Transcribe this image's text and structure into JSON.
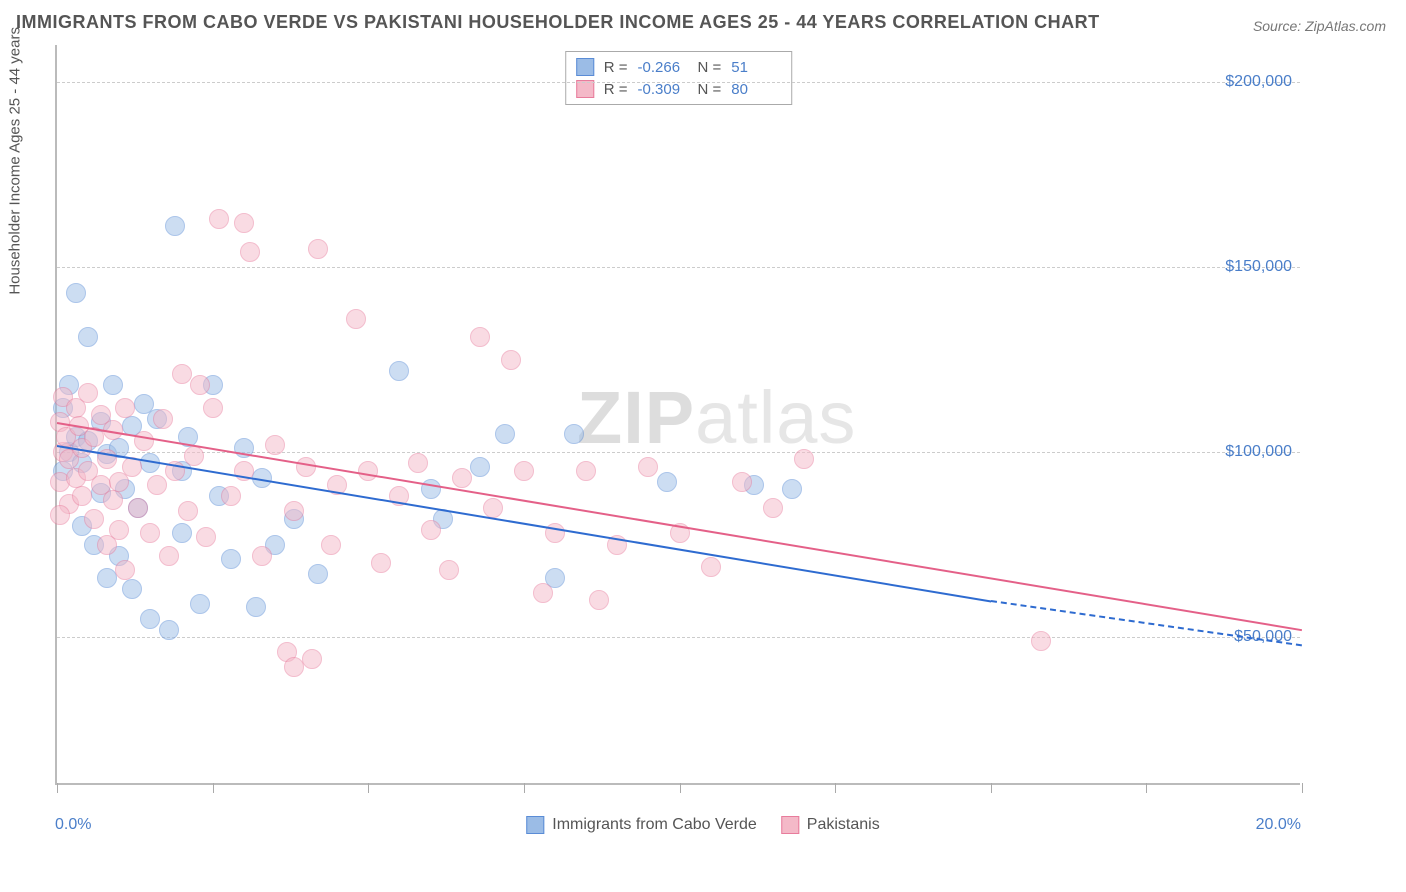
{
  "title": "IMMIGRANTS FROM CABO VERDE VS PAKISTANI HOUSEHOLDER INCOME AGES 25 - 44 YEARS CORRELATION CHART",
  "source": "Source: ZipAtlas.com",
  "ylabel": "Householder Income Ages 25 - 44 years",
  "watermark_strong": "ZIP",
  "watermark_light": "atlas",
  "chart": {
    "type": "scatter",
    "xlim": [
      0,
      20
    ],
    "ylim": [
      10000,
      210000
    ],
    "x_tick_label_min": "0.0%",
    "x_tick_label_max": "20.0%",
    "x_tick_positions": [
      0,
      2.5,
      5,
      7.5,
      10,
      12.5,
      15,
      17.5,
      20
    ],
    "y_gridlines": [
      50000,
      100000,
      150000,
      200000
    ],
    "y_tick_labels": [
      "$50,000",
      "$100,000",
      "$150,000",
      "$200,000"
    ],
    "background_color": "#ffffff",
    "grid_color": "#cccccc",
    "axis_color": "#bbbbbb",
    "label_color": "#4a7ec9",
    "title_color": "#555555",
    "point_radius": 10,
    "point_opacity": 0.5,
    "line_width": 2
  },
  "series": [
    {
      "name": "Immigrants from Cabo Verde",
      "fill": "#9bbce6",
      "stroke": "#5a8cd6",
      "line_color": "#2e6bd0",
      "r": "-0.266",
      "n": "51",
      "trend": {
        "x0": 0,
        "y0": 102000,
        "x1": 15,
        "y1": 60000,
        "dash_after_x": 15,
        "x2": 20,
        "y2": 48000
      },
      "points": [
        [
          0.1,
          95000
        ],
        [
          0.1,
          112000
        ],
        [
          0.2,
          100000
        ],
        [
          0.2,
          118000
        ],
        [
          0.3,
          104000
        ],
        [
          0.3,
          143000
        ],
        [
          0.4,
          97000
        ],
        [
          0.5,
          131000
        ],
        [
          0.5,
          103000
        ],
        [
          0.6,
          75000
        ],
        [
          0.7,
          108000
        ],
        [
          0.7,
          89000
        ],
        [
          0.8,
          99500
        ],
        [
          0.8,
          66000
        ],
        [
          0.9,
          118000
        ],
        [
          1.0,
          101000
        ],
        [
          1.0,
          72000
        ],
        [
          1.1,
          90000
        ],
        [
          1.2,
          107000
        ],
        [
          1.2,
          63000
        ],
        [
          1.3,
          85000
        ],
        [
          1.4,
          113000
        ],
        [
          1.5,
          55000
        ],
        [
          1.5,
          97000
        ],
        [
          1.6,
          109000
        ],
        [
          1.8,
          52000
        ],
        [
          1.9,
          161000
        ],
        [
          2.0,
          95000
        ],
        [
          2.0,
          78000
        ],
        [
          2.1,
          104000
        ],
        [
          2.3,
          59000
        ],
        [
          2.5,
          118000
        ],
        [
          2.6,
          88000
        ],
        [
          2.8,
          71000
        ],
        [
          3.0,
          101000
        ],
        [
          3.2,
          58000
        ],
        [
          3.3,
          93000
        ],
        [
          3.5,
          75000
        ],
        [
          3.8,
          82000
        ],
        [
          4.2,
          67000
        ],
        [
          5.5,
          122000
        ],
        [
          6.2,
          82000
        ],
        [
          6.8,
          96000
        ],
        [
          7.2,
          105000
        ],
        [
          8.0,
          66000
        ],
        [
          8.3,
          105000
        ],
        [
          9.8,
          92000
        ],
        [
          11.2,
          91000
        ],
        [
          11.8,
          90000
        ],
        [
          6.0,
          90000
        ],
        [
          0.4,
          80000
        ]
      ]
    },
    {
      "name": "Pakistanis",
      "fill": "#f4b9c8",
      "stroke": "#e87c9c",
      "line_color": "#e46088",
      "r": "-0.309",
      "n": "80",
      "trend": {
        "x0": 0,
        "y0": 108000,
        "x1": 20,
        "y1": 52000
      },
      "points": [
        [
          0.05,
          108000
        ],
        [
          0.05,
          92000
        ],
        [
          0.1,
          115000
        ],
        [
          0.1,
          100000
        ],
        [
          0.15,
          104000
        ],
        [
          0.2,
          98000
        ],
        [
          0.2,
          86000
        ],
        [
          0.3,
          112000
        ],
        [
          0.3,
          93000
        ],
        [
          0.35,
          107000
        ],
        [
          0.4,
          101000
        ],
        [
          0.4,
          88000
        ],
        [
          0.5,
          116000
        ],
        [
          0.5,
          95000
        ],
        [
          0.6,
          104000
        ],
        [
          0.6,
          82000
        ],
        [
          0.7,
          110000
        ],
        [
          0.7,
          91000
        ],
        [
          0.8,
          98000
        ],
        [
          0.8,
          75000
        ],
        [
          0.9,
          106000
        ],
        [
          0.9,
          87000
        ],
        [
          1.0,
          92000
        ],
        [
          1.0,
          79000
        ],
        [
          1.1,
          112000
        ],
        [
          1.2,
          96000
        ],
        [
          1.3,
          85000
        ],
        [
          1.4,
          103000
        ],
        [
          1.5,
          78000
        ],
        [
          1.6,
          91000
        ],
        [
          1.7,
          109000
        ],
        [
          1.8,
          72000
        ],
        [
          1.9,
          95000
        ],
        [
          2.0,
          121000
        ],
        [
          2.1,
          84000
        ],
        [
          2.2,
          99000
        ],
        [
          2.4,
          77000
        ],
        [
          2.5,
          112000
        ],
        [
          2.6,
          163000
        ],
        [
          2.8,
          88000
        ],
        [
          3.0,
          162000
        ],
        [
          3.0,
          95000
        ],
        [
          3.1,
          154000
        ],
        [
          3.3,
          72000
        ],
        [
          3.5,
          102000
        ],
        [
          3.7,
          46000
        ],
        [
          3.8,
          84000
        ],
        [
          3.8,
          42000
        ],
        [
          4.0,
          96000
        ],
        [
          4.2,
          155000
        ],
        [
          4.4,
          75000
        ],
        [
          4.5,
          91000
        ],
        [
          4.8,
          136000
        ],
        [
          5.0,
          95000
        ],
        [
          5.2,
          70000
        ],
        [
          5.5,
          88000
        ],
        [
          5.8,
          97000
        ],
        [
          6.0,
          79000
        ],
        [
          6.3,
          68000
        ],
        [
          6.5,
          93000
        ],
        [
          6.8,
          131000
        ],
        [
          7.0,
          85000
        ],
        [
          7.3,
          125000
        ],
        [
          7.5,
          95000
        ],
        [
          7.8,
          62000
        ],
        [
          8.0,
          78000
        ],
        [
          8.5,
          95000
        ],
        [
          8.7,
          60000
        ],
        [
          9.0,
          75000
        ],
        [
          9.5,
          96000
        ],
        [
          10.0,
          78000
        ],
        [
          10.5,
          69000
        ],
        [
          11.0,
          92000
        ],
        [
          11.5,
          85000
        ],
        [
          12.0,
          98000
        ],
        [
          15.8,
          49000
        ],
        [
          2.3,
          118000
        ],
        [
          1.1,
          68000
        ],
        [
          4.1,
          44000
        ],
        [
          0.05,
          83000
        ]
      ]
    }
  ],
  "bottom_legend": [
    {
      "label": "Immigrants from Cabo Verde",
      "fill": "#9bbce6",
      "stroke": "#5a8cd6"
    },
    {
      "label": "Pakistanis",
      "fill": "#f4b9c8",
      "stroke": "#e87c9c"
    }
  ],
  "corr_legend_labels": {
    "R": "R =",
    "N": "N ="
  }
}
